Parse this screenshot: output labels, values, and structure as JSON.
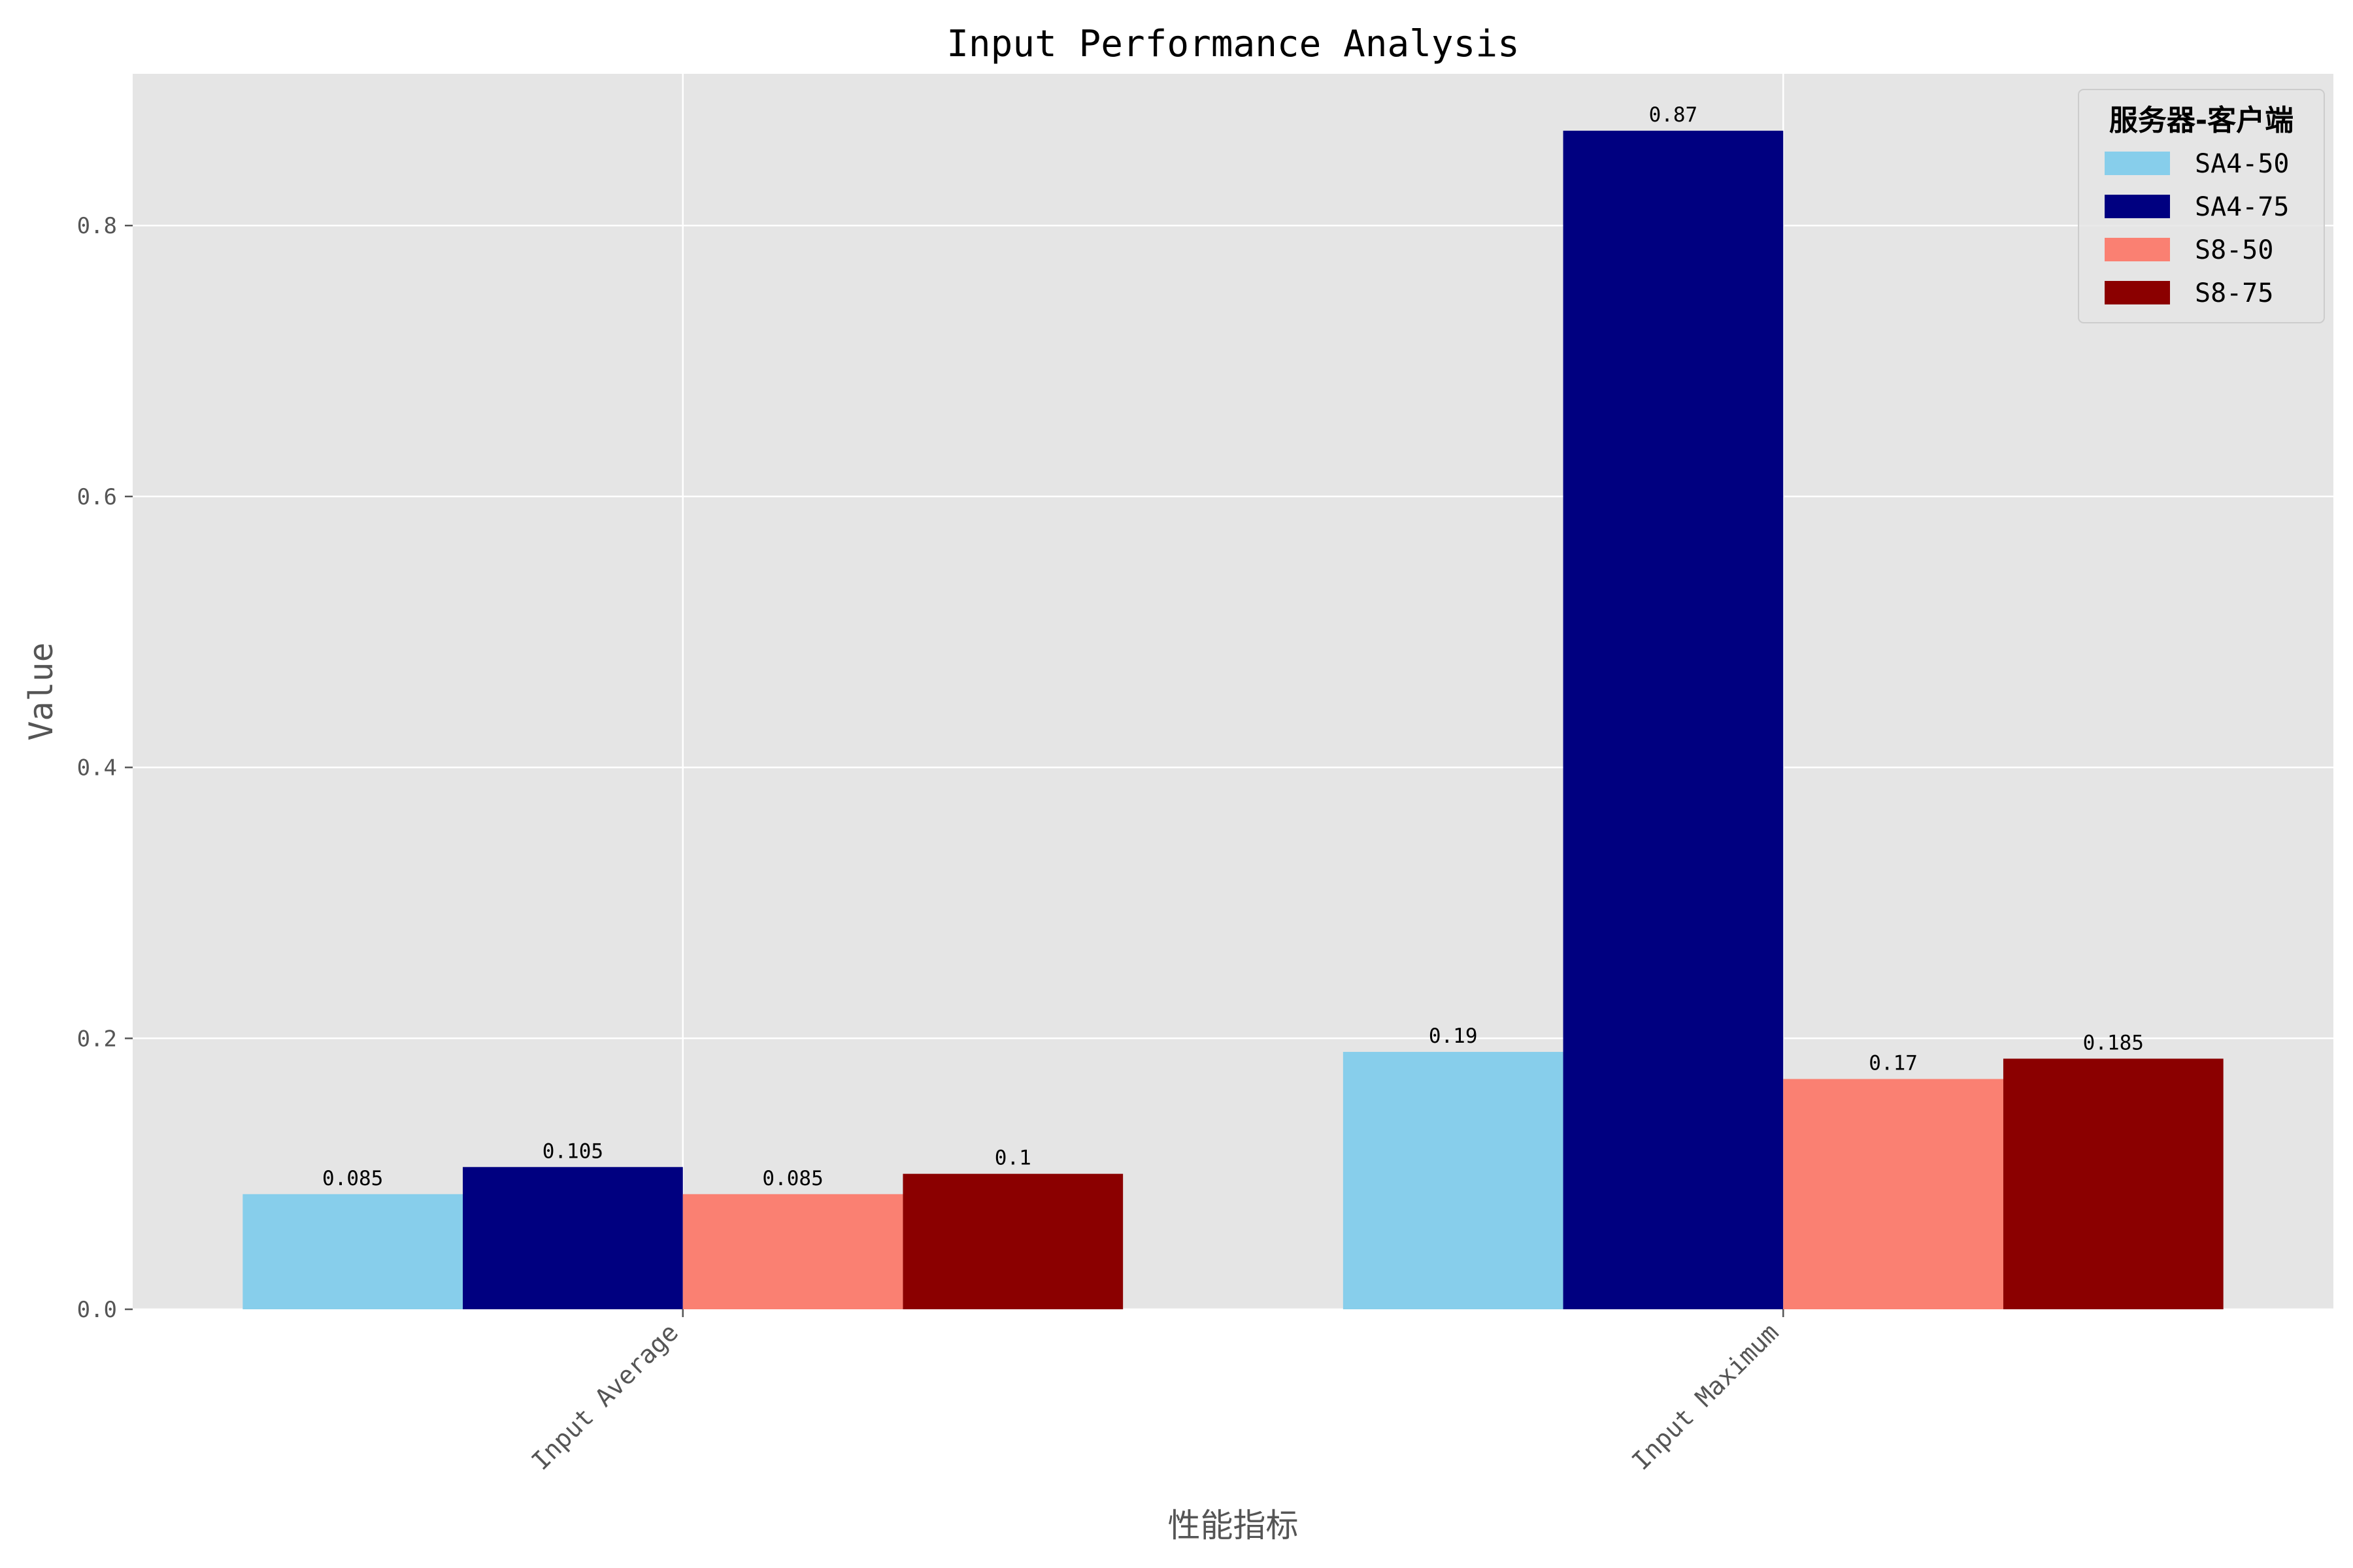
{
  "chart_data": {
    "type": "bar",
    "title": "Input Performance Analysis",
    "xlabel": "性能指标",
    "ylabel": "Value",
    "categories": [
      "Input Average",
      "Input Maximum"
    ],
    "series": [
      {
        "name": "SA4-50",
        "values": [
          0.085,
          0.19
        ],
        "color": "#87ceeb"
      },
      {
        "name": "SA4-75",
        "values": [
          0.105,
          0.87
        ],
        "color": "#000080"
      },
      {
        "name": "S8-50",
        "values": [
          0.085,
          0.17
        ],
        "color": "#fa8072"
      },
      {
        "name": "S8-75",
        "values": [
          0.1,
          0.185
        ],
        "color": "#8b0000"
      }
    ],
    "data_labels": [
      [
        "0.085",
        "0.19"
      ],
      [
        "0.105",
        "0.87"
      ],
      [
        "0.085",
        "0.17"
      ],
      [
        "0.1",
        "0.185"
      ]
    ],
    "ylim": [
      0,
      0.912
    ],
    "yticks": [
      0.0,
      0.2,
      0.4,
      0.6,
      0.8
    ],
    "ytick_labels": [
      "0.0",
      "0.2",
      "0.4",
      "0.6",
      "0.8"
    ],
    "legend": {
      "title": "服务器-客户端",
      "position": "top-right"
    },
    "grid": true,
    "style": {
      "plot_background": "#e5e5e5",
      "grid_color": "#ffffff"
    }
  }
}
